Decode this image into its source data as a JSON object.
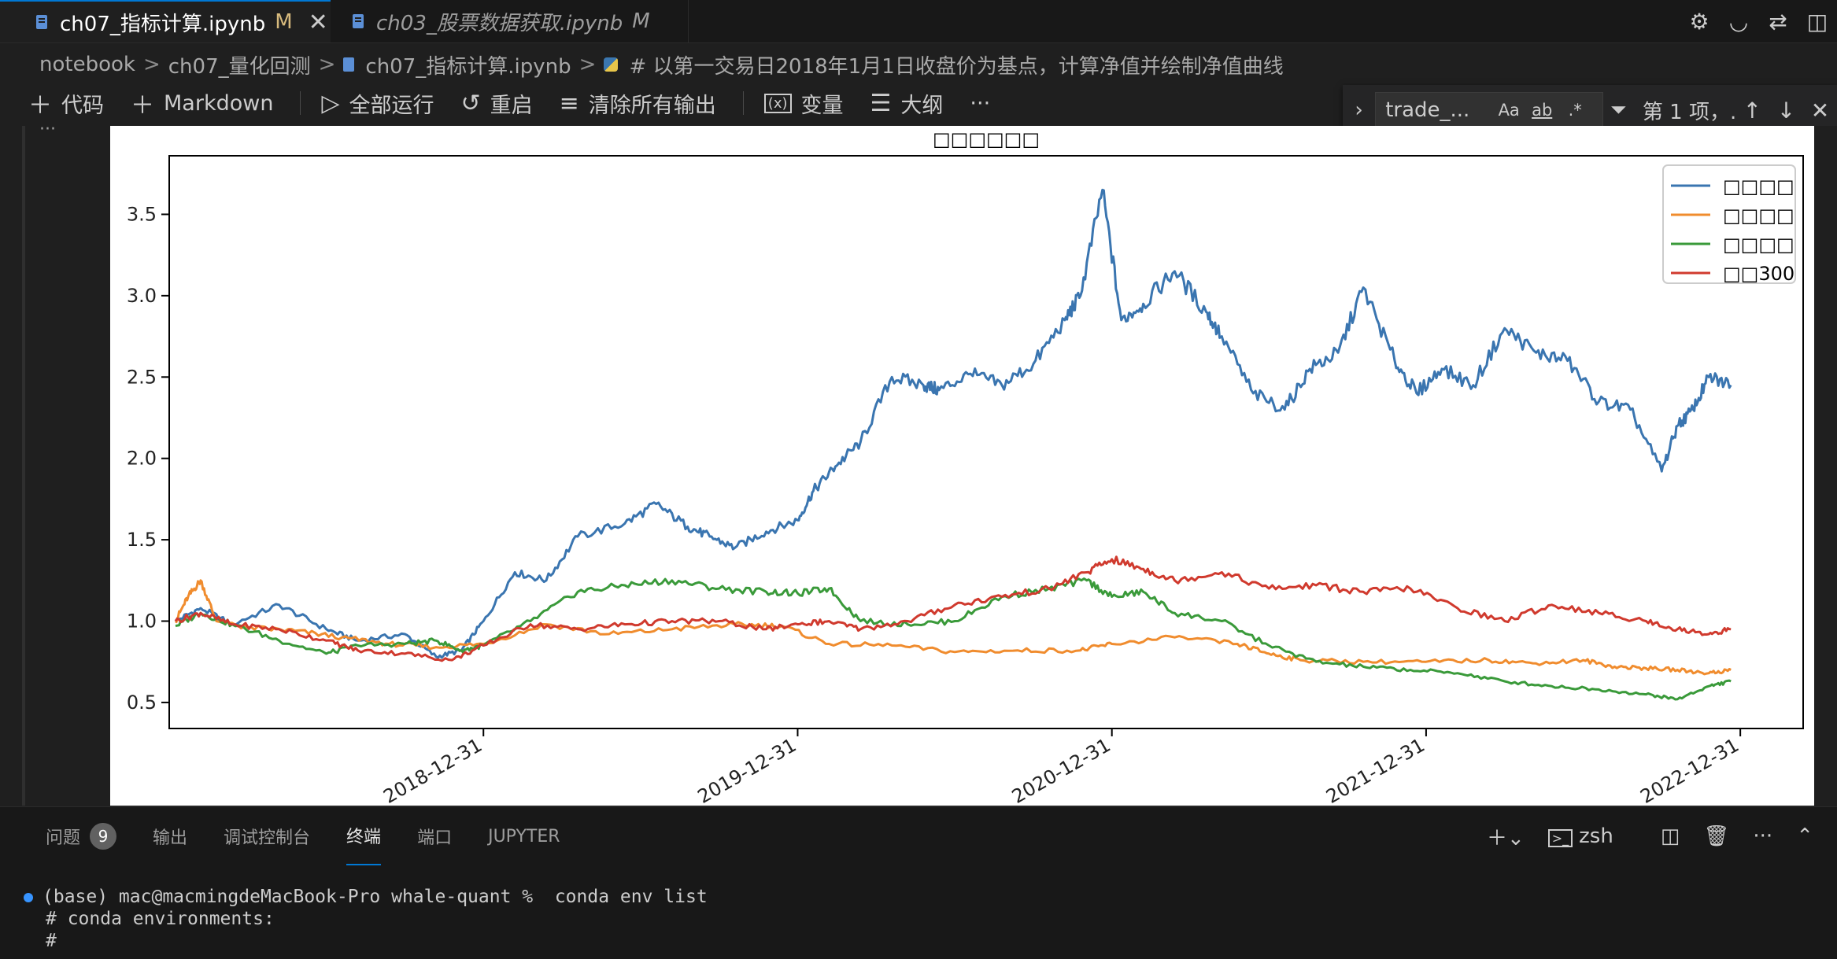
{
  "tabs": [
    {
      "label": "ch07_指标计算.ipynb",
      "modified": "M",
      "close": "✕"
    },
    {
      "label": "ch03_股票数据获取.ipynb",
      "modified": "M"
    }
  ],
  "breadcrumb": [
    "notebook",
    "ch07_量化回测",
    "ch07_指标计算.ipynb",
    "# 以第一交易日2018年1月1日收盘价为基点，计算净值并绘制净值曲线"
  ],
  "toolbar": {
    "add_code": "代码",
    "add_markdown": "Markdown",
    "run_all": "全部运行",
    "restart": "重启",
    "clear_outputs": "清除所有输出",
    "variables": "变量",
    "outline": "大纲",
    "more": "···"
  },
  "find": {
    "value": "trade_...",
    "opt_case": "Aa",
    "opt_word": "ab",
    "opt_regex": ".*",
    "count": "第 1 项，..."
  },
  "editor": {
    "collapsed_indicator": "···"
  },
  "chart_data": {
    "type": "line",
    "title": "□□□□□□",
    "x_ticks": [
      "2018-12-31",
      "2019-12-31",
      "2020-12-31",
      "2021-12-31",
      "2022-12-31"
    ],
    "y_ticks": [
      "0.5",
      "1.0",
      "1.5",
      "2.0",
      "2.5",
      "3.0",
      "3.5"
    ],
    "ylim": [
      0.34,
      3.86
    ],
    "xlim": [
      2018.0,
      2023.2
    ],
    "grid": false,
    "legend_position": "top-right",
    "series": [
      {
        "name": "□□□□",
        "color": "#3a75b0",
        "x": [
          2018.02,
          2018.1,
          2018.2,
          2018.35,
          2018.5,
          2018.6,
          2018.75,
          2018.85,
          2018.93,
          2019.0,
          2019.1,
          2019.2,
          2019.3,
          2019.45,
          2019.55,
          2019.65,
          2019.72,
          2019.8,
          2019.9,
          2020.0,
          2020.05,
          2020.12,
          2020.2,
          2020.3,
          2020.4,
          2020.45,
          2020.55,
          2020.65,
          2020.75,
          2020.85,
          2020.9,
          2020.97,
          2021.03,
          2021.1,
          2021.2,
          2021.3,
          2021.35,
          2021.45,
          2021.55,
          2021.63,
          2021.72,
          2021.8,
          2021.9,
          2021.97,
          2022.05,
          2022.15,
          2022.25,
          2022.35,
          2022.45,
          2022.55,
          2022.65,
          2022.75,
          2022.8,
          2022.85,
          2022.9,
          2022.97
        ],
        "y": [
          1.0,
          1.08,
          0.98,
          1.1,
          0.95,
          0.88,
          0.92,
          0.78,
          0.82,
          1.0,
          1.3,
          1.25,
          1.52,
          1.6,
          1.72,
          1.58,
          1.52,
          1.45,
          1.55,
          1.62,
          1.8,
          1.95,
          2.1,
          2.5,
          2.45,
          2.42,
          2.52,
          2.45,
          2.58,
          2.85,
          3.0,
          3.65,
          2.85,
          2.95,
          3.15,
          2.9,
          2.75,
          2.4,
          2.3,
          2.55,
          2.65,
          3.05,
          2.6,
          2.4,
          2.55,
          2.45,
          2.8,
          2.65,
          2.6,
          2.35,
          2.3,
          1.92,
          2.2,
          2.3,
          2.5,
          2.45
        ]
      },
      {
        "name": "□□□□",
        "color": "#f08c2e",
        "x": [
          2018.02,
          2018.06,
          2018.1,
          2018.15,
          2018.25,
          2018.4,
          2018.55,
          2018.7,
          2018.85,
          2019.0,
          2019.2,
          2019.4,
          2019.6,
          2019.8,
          2019.95,
          2020.1,
          2020.3,
          2020.5,
          2020.7,
          2020.9,
          2021.0,
          2021.2,
          2021.4,
          2021.5,
          2021.6,
          2021.8,
          2022.0,
          2022.2,
          2022.35,
          2022.5,
          2022.6,
          2022.7,
          2022.8,
          2022.9,
          2022.97
        ],
        "y": [
          1.0,
          1.15,
          1.25,
          1.0,
          0.96,
          0.94,
          0.9,
          0.86,
          0.84,
          0.86,
          0.98,
          0.92,
          0.95,
          0.98,
          0.97,
          0.86,
          0.85,
          0.81,
          0.82,
          0.82,
          0.86,
          0.9,
          0.86,
          0.8,
          0.76,
          0.75,
          0.75,
          0.76,
          0.74,
          0.76,
          0.72,
          0.71,
          0.7,
          0.68,
          0.7
        ]
      },
      {
        "name": "□□□□",
        "color": "#3a9a3a",
        "x": [
          2018.02,
          2018.1,
          2018.2,
          2018.35,
          2018.5,
          2018.6,
          2018.75,
          2018.85,
          2018.93,
          2019.0,
          2019.15,
          2019.3,
          2019.45,
          2019.6,
          2019.75,
          2019.9,
          2020.0,
          2020.1,
          2020.2,
          2020.35,
          2020.5,
          2020.65,
          2020.8,
          2020.92,
          2021.0,
          2021.1,
          2021.2,
          2021.35,
          2021.5,
          2021.65,
          2021.8,
          2021.95,
          2022.1,
          2022.25,
          2022.4,
          2022.55,
          2022.7,
          2022.8,
          2022.9,
          2022.97
        ],
        "y": [
          0.97,
          1.05,
          0.98,
          0.88,
          0.8,
          0.85,
          0.86,
          0.88,
          0.82,
          0.85,
          1.0,
          1.18,
          1.22,
          1.25,
          1.2,
          1.18,
          1.17,
          1.2,
          1.0,
          0.98,
          1.0,
          1.15,
          1.2,
          1.25,
          1.15,
          1.18,
          1.05,
          1.0,
          0.85,
          0.75,
          0.72,
          0.7,
          0.68,
          0.63,
          0.6,
          0.58,
          0.55,
          0.52,
          0.6,
          0.63
        ]
      },
      {
        "name": "□□300",
        "color": "#d03a2e",
        "x": [
          2018.02,
          2018.1,
          2018.2,
          2018.35,
          2018.5,
          2018.6,
          2018.75,
          2018.9,
          2019.0,
          2019.15,
          2019.3,
          2019.45,
          2019.6,
          2019.75,
          2019.9,
          2020.0,
          2020.1,
          2020.2,
          2020.35,
          2020.5,
          2020.65,
          2020.8,
          2020.92,
          2021.0,
          2021.1,
          2021.2,
          2021.35,
          2021.5,
          2021.65,
          2021.8,
          2021.95,
          2022.1,
          2022.25,
          2022.4,
          2022.55,
          2022.7,
          2022.8,
          2022.9,
          2022.97
        ],
        "y": [
          1.0,
          1.05,
          0.98,
          0.95,
          0.88,
          0.82,
          0.8,
          0.76,
          0.85,
          0.98,
          0.95,
          0.98,
          1.0,
          1.0,
          0.95,
          0.98,
          1.0,
          0.95,
          1.0,
          1.1,
          1.15,
          1.2,
          1.3,
          1.38,
          1.32,
          1.25,
          1.3,
          1.2,
          1.22,
          1.18,
          1.2,
          1.08,
          1.0,
          1.1,
          1.05,
          1.0,
          0.95,
          0.92,
          0.95
        ]
      }
    ]
  },
  "panel": {
    "tabs": [
      {
        "label": "问题",
        "badge": "9"
      },
      {
        "label": "输出"
      },
      {
        "label": "调试控制台"
      },
      {
        "label": "终端"
      },
      {
        "label": "端口"
      },
      {
        "label": "JUPYTER"
      }
    ],
    "shell": "zsh",
    "terminal_lines": [
      "(base) mac@macmingdeMacBook-Pro whale-quant %  conda env list",
      "# conda environments:",
      "#"
    ]
  }
}
